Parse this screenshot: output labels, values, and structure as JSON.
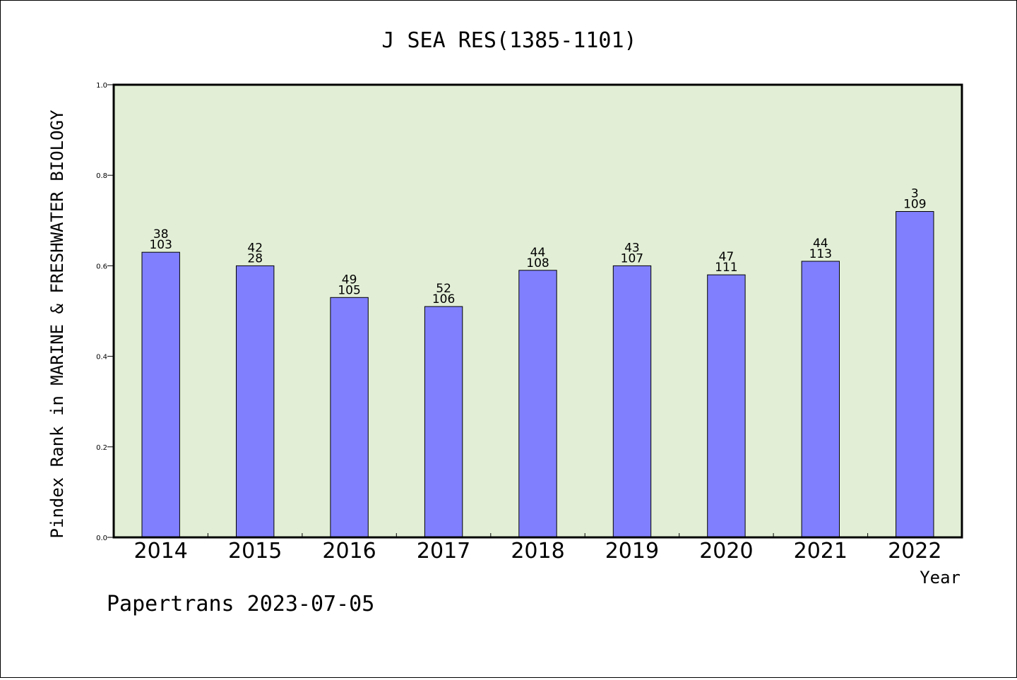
{
  "chart_data": {
    "type": "bar",
    "title": "J SEA RES(1385-1101)",
    "xlabel": "Year",
    "ylabel": "Pindex Rank in MARINE & FRESHWATER BIOLOGY",
    "ylim": [
      0,
      1.0
    ],
    "yticks": [
      "0.0",
      "0.2",
      "0.4",
      "0.6",
      "0.8",
      "1.0"
    ],
    "categories": [
      "2014",
      "2015",
      "2016",
      "2017",
      "2018",
      "2019",
      "2020",
      "2021",
      "2022"
    ],
    "values": [
      0.63,
      0.6,
      0.53,
      0.51,
      0.59,
      0.6,
      0.58,
      0.61,
      0.72
    ],
    "labels_top": [
      "38",
      "42",
      "49",
      "52",
      "44",
      "43",
      "47",
      "44",
      "3"
    ],
    "labels_bottom": [
      "103",
      "28",
      "105",
      "106",
      "108",
      "107",
      "111",
      "113",
      "109"
    ],
    "grid": false,
    "colors": {
      "bar": "#8080ff",
      "plot_background": "#e2efd6"
    }
  },
  "footer": "Papertrans 2023-07-05"
}
